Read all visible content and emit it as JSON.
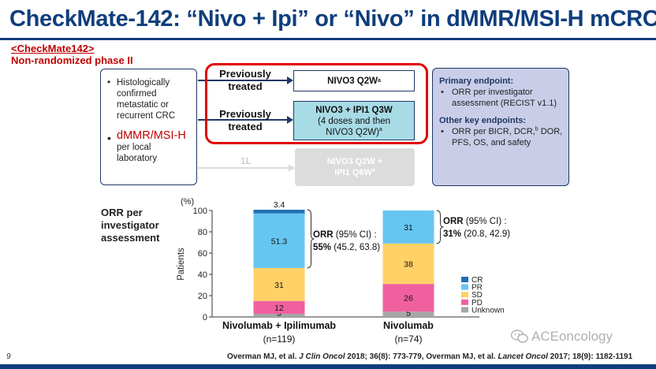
{
  "header": {
    "title": "CheckMate-142: “Nivo + Ipi” or “Nivo” in dMMR/MSI-H mCRC",
    "study_link": "<CheckMate142>",
    "study_type": "Non-randomized phase II"
  },
  "eligibility": {
    "item1": "Histologically confirmed metastatic or recurrent CRC",
    "item2_highlight": "dMMR/MSI-H",
    "item2_rest": "per local laboratory"
  },
  "arms": {
    "arm1_label": "Previously treated",
    "arm2_label": "Previously treated",
    "arm3_label": "1L",
    "trt1": "NIVO3 Q2W",
    "trt1_sup": "a",
    "trt2_line1": "NIVO3 + IPI1 Q3W",
    "trt2_line2": "(4 doses and then",
    "trt2_line3": "NIVO3 Q2W)",
    "trt2_sup": "a",
    "trt3_line1": "NIVO3 Q2W +",
    "trt3_line2": "IPI1 Q6W",
    "trt3_sup": "a"
  },
  "endpoints": {
    "primary_heading": "Primary endpoint:",
    "primary_item": "ORR per investigator assessment (RECIST v1.1)",
    "other_heading": "Other key endpoints:",
    "other_item_a": "ORR per BICR, DCR,",
    "other_item_sup": "b",
    "other_item_b": " DOR, PFS, OS, and safety"
  },
  "orr": {
    "heading": "ORR per investigator assessment",
    "combo_label": "ORR",
    "combo_ci_label": " (95% CI) :",
    "combo_value": "55%",
    "combo_ci": " (45.2, 63.8)",
    "mono_label": "ORR",
    "mono_ci_label": " (95% CI) :",
    "mono_value": "31%",
    "mono_ci": " (20.8, 42.9)"
  },
  "chart_data": {
    "type": "bar",
    "stacked": true,
    "ylabel": "Patients",
    "yunit": "(%)",
    "ylim": [
      0,
      100
    ],
    "yticks": [
      0,
      20,
      40,
      60,
      80,
      100
    ],
    "legend_position": "right",
    "categories": [
      {
        "name": "Nivolumab + Ipilimumab",
        "n": "(n=119)"
      },
      {
        "name": "Nivolumab",
        "n": "(n=74)"
      }
    ],
    "series": [
      {
        "name": "Unknown",
        "color": "#a6a6a6",
        "values": [
          3,
          5
        ]
      },
      {
        "name": "PD",
        "color": "#f0609e",
        "values": [
          12,
          26
        ]
      },
      {
        "name": "SD",
        "color": "#ffd166",
        "values": [
          31,
          38
        ]
      },
      {
        "name": "PR",
        "color": "#66c6f2",
        "values": [
          51.3,
          31
        ]
      },
      {
        "name": "CR",
        "color": "#1f6fb5",
        "values": [
          3.4,
          0
        ]
      }
    ],
    "data_labels": [
      [
        "3",
        "12",
        "31",
        "51.3",
        "3.4"
      ],
      [
        "5",
        "26",
        "38",
        "31",
        ""
      ]
    ],
    "legend_order": [
      "CR",
      "PR",
      "SD",
      "PD",
      "Unknown"
    ]
  },
  "footer": {
    "page": "9",
    "ref_a": "Overman MJ, et al. ",
    "ref_b": "J Clin Oncol",
    "ref_c": " 2018; 36(8): 773-779, Overman MJ, et al. ",
    "ref_d": "Lancet Oncol",
    "ref_e": " 2017; 18(9): 1182-1191",
    "watermark": "ACEoncology"
  },
  "colors": {
    "title": "#0f3e7c",
    "accent_red": "#c00000",
    "frame_red": "#e00000"
  }
}
